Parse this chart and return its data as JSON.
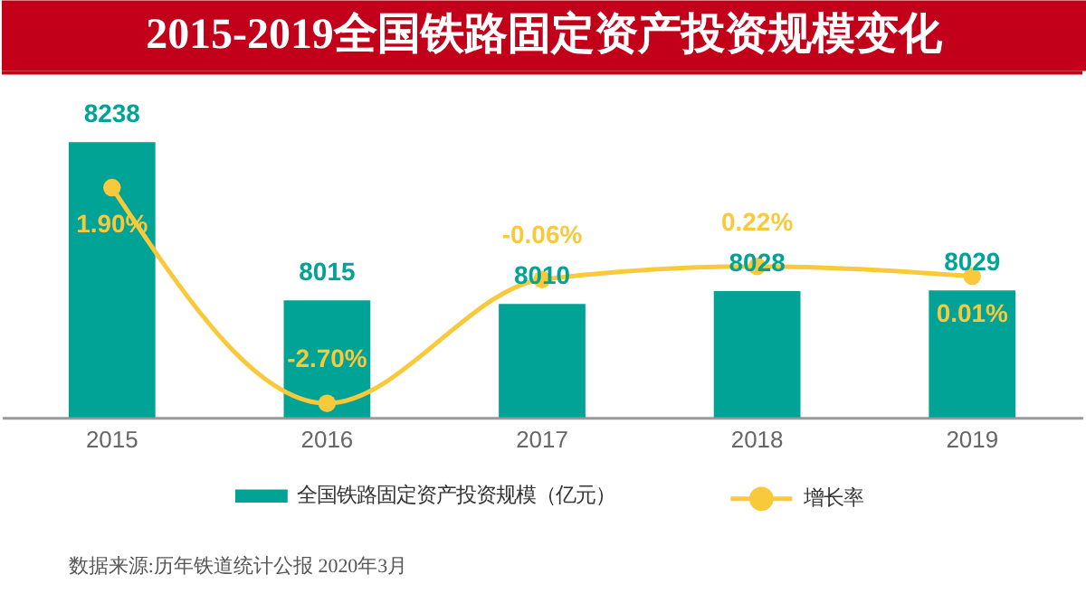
{
  "chart_data": {
    "type": "bar",
    "title": "2015-2019全国铁路固定资产投资规模变化",
    "categories": [
      "2015",
      "2016",
      "2017",
      "2018",
      "2019"
    ],
    "series": [
      {
        "name": "全国铁路固定资产投资规模（亿元）",
        "color": "#00a396",
        "values": [
          8238,
          8015,
          8010,
          8028,
          8029
        ],
        "value_labels": [
          "8238",
          "8015",
          "8010",
          "8028",
          "8029"
        ]
      },
      {
        "name": "增长率",
        "type": "line",
        "axis": "y2",
        "color": "#f9c93c",
        "values": [
          1.9,
          -2.7,
          -0.06,
          0.22,
          0.01
        ],
        "value_labels": [
          "1.90%",
          "-2.70%",
          "-0.06%",
          "0.22%",
          "0.01%"
        ]
      }
    ],
    "ylim": [
      7850,
      8336
    ],
    "y2lim": [
      -3.0,
      4.35
    ],
    "tick_labels": "x",
    "legend": "bottom",
    "marker": "circle",
    "line_style": "solid",
    "annotations": [
      "数据来源:历年铁道统计公报 2020年3月"
    ]
  }
}
